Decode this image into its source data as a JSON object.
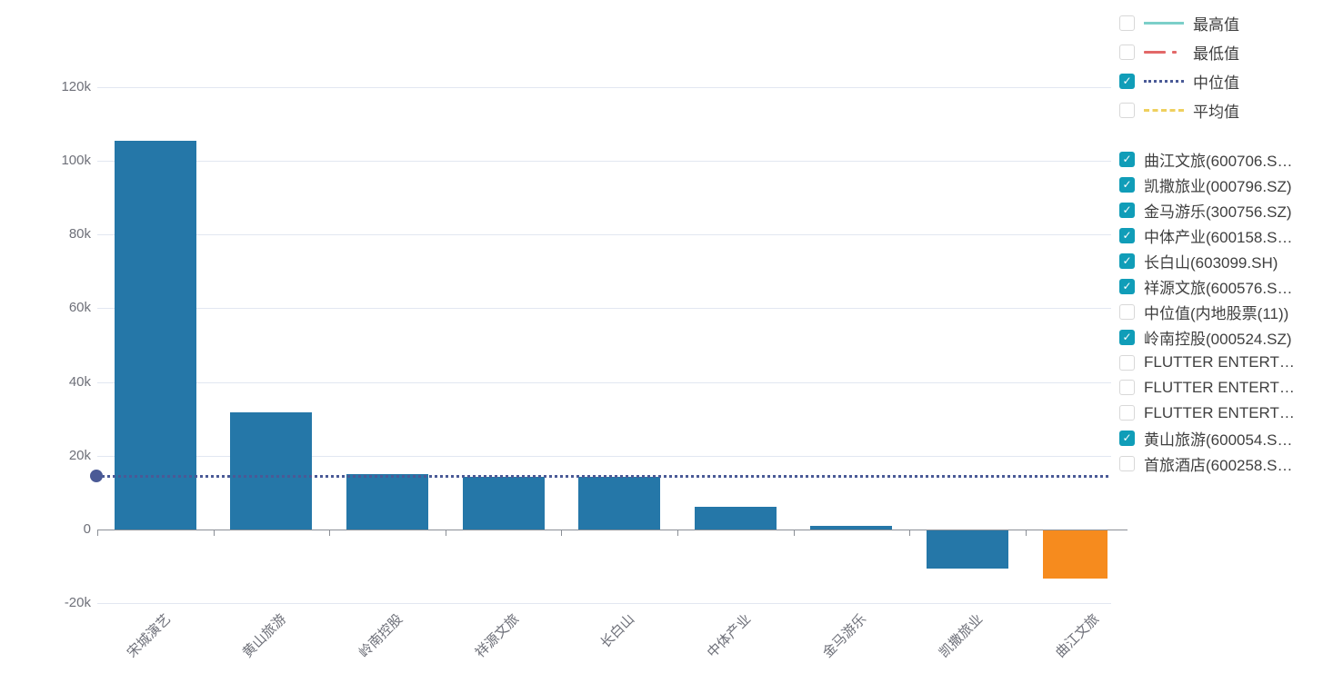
{
  "chart_data": {
    "type": "bar",
    "title": "",
    "xlabel": "",
    "ylabel": "",
    "categories": [
      "宋城演艺",
      "黄山旅游",
      "岭南控股",
      "祥源文旅",
      "长白山",
      "中体产业",
      "金马游乐",
      "凯撒旅业",
      "曲江文旅"
    ],
    "values": [
      105500,
      31700,
      14900,
      14200,
      14300,
      6200,
      1000,
      -10300,
      -13000
    ],
    "bar_colors": [
      "#2577a8",
      "#2577a8",
      "#2577a8",
      "#2577a8",
      "#2577a8",
      "#2577a8",
      "#2577a8",
      "#2577a8",
      "#f68b1e"
    ],
    "ylim": [
      -20000,
      120000
    ],
    "ytick_values": [
      -20000,
      0,
      20000,
      40000,
      60000,
      80000,
      100000,
      120000
    ],
    "ytick_labels": [
      "-20k",
      "0",
      "20k",
      "40k",
      "60k",
      "80k",
      "100k",
      "120k"
    ],
    "median_line": {
      "label": "中位值",
      "value": 14500,
      "color": "#4a5a96",
      "style": "dotted"
    },
    "grid": true,
    "legend_position": "right"
  },
  "colors": {
    "bar_blue": "#2577a8",
    "bar_orange": "#f68b1e",
    "checkbox_checked": "#109db8",
    "axis_text": "#6e7079",
    "grid_line": "#e2e7f1",
    "axis_line": "#8b8f96",
    "legend_text": "#3f3f3f",
    "median": "#4a5a96"
  },
  "legend": {
    "line_items": [
      {
        "label": "最高值",
        "checked": false,
        "color": "#7ccfc9",
        "style": "solid"
      },
      {
        "label": "最低值",
        "checked": false,
        "color": "#e26868",
        "style": "dash-dot"
      },
      {
        "label": "中位值",
        "checked": true,
        "color": "#4a5a96",
        "style": "dotted"
      },
      {
        "label": "平均值",
        "checked": false,
        "color": "#efd05e",
        "style": "dashed"
      }
    ],
    "series_items": [
      {
        "label": "曲江文旅(600706.S…",
        "checked": true
      },
      {
        "label": "凯撒旅业(000796.SZ)",
        "checked": true
      },
      {
        "label": "金马游乐(300756.SZ)",
        "checked": true
      },
      {
        "label": "中体产业(600158.S…",
        "checked": true
      },
      {
        "label": "长白山(603099.SH)",
        "checked": true
      },
      {
        "label": "祥源文旅(600576.S…",
        "checked": true
      },
      {
        "label": "中位值(内地股票(11))",
        "checked": false
      },
      {
        "label": "岭南控股(000524.SZ)",
        "checked": true
      },
      {
        "label": "FLUTTER ENTERT…",
        "checked": false
      },
      {
        "label": "FLUTTER ENTERT…",
        "checked": false
      },
      {
        "label": "FLUTTER ENTERT…",
        "checked": false
      },
      {
        "label": "黄山旅游(600054.S…",
        "checked": true
      },
      {
        "label": "首旅酒店(600258.S…",
        "checked": false
      }
    ]
  }
}
